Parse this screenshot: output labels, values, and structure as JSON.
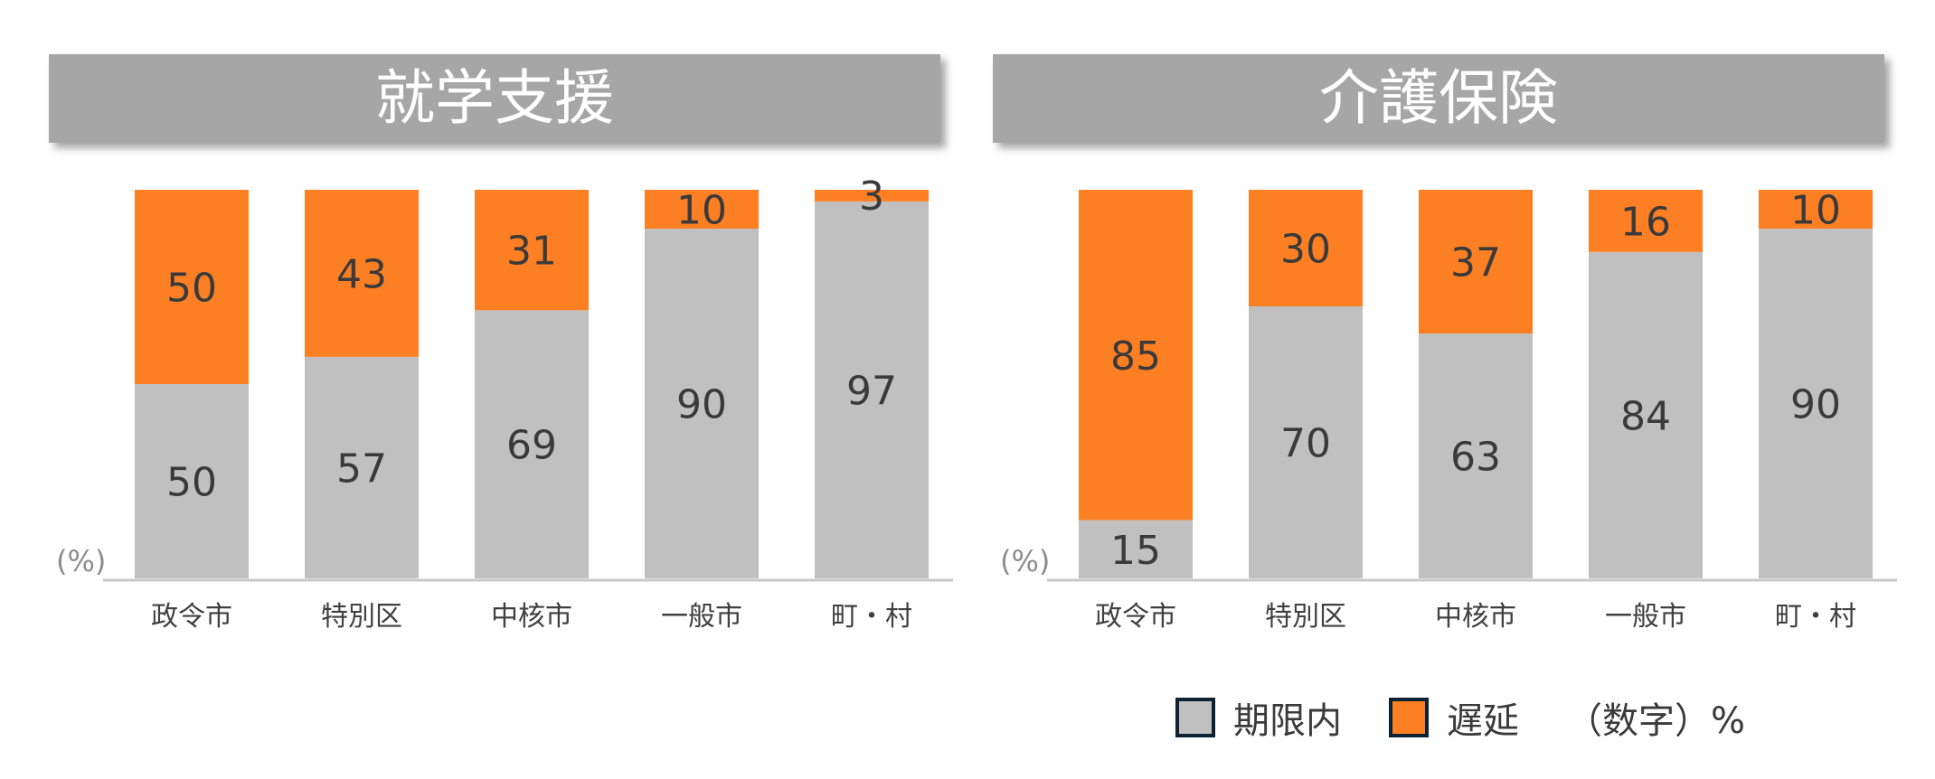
{
  "colors": {
    "on_time": "#c0c0c0",
    "delayed": "#fd7f23",
    "axis": "#c8c8c8",
    "swatch_border": "#0d2233"
  },
  "legend": {
    "on_time_label": "期限内",
    "delayed_label": "遅延",
    "note": "（数字）%"
  },
  "chart_data": [
    {
      "type": "bar",
      "stacked": true,
      "title": "就学支援",
      "unit_label": "(%)",
      "categories": [
        "政令市",
        "特別区",
        "中核市",
        "一般市",
        "町・村"
      ],
      "ylim": [
        0,
        100
      ],
      "series": [
        {
          "name": "期限内",
          "values": [
            50,
            57,
            69,
            90,
            97
          ]
        },
        {
          "name": "遅延",
          "values": [
            50,
            43,
            31,
            10,
            3
          ]
        }
      ]
    },
    {
      "type": "bar",
      "stacked": true,
      "title": "介護保険",
      "unit_label": "(%)",
      "categories": [
        "政令市",
        "特別区",
        "中核市",
        "一般市",
        "町・村"
      ],
      "ylim": [
        0,
        100
      ],
      "series": [
        {
          "name": "期限内",
          "values": [
            15,
            70,
            63,
            84,
            90
          ]
        },
        {
          "name": "遅延",
          "values": [
            85,
            30,
            37,
            16,
            10
          ]
        }
      ]
    }
  ]
}
